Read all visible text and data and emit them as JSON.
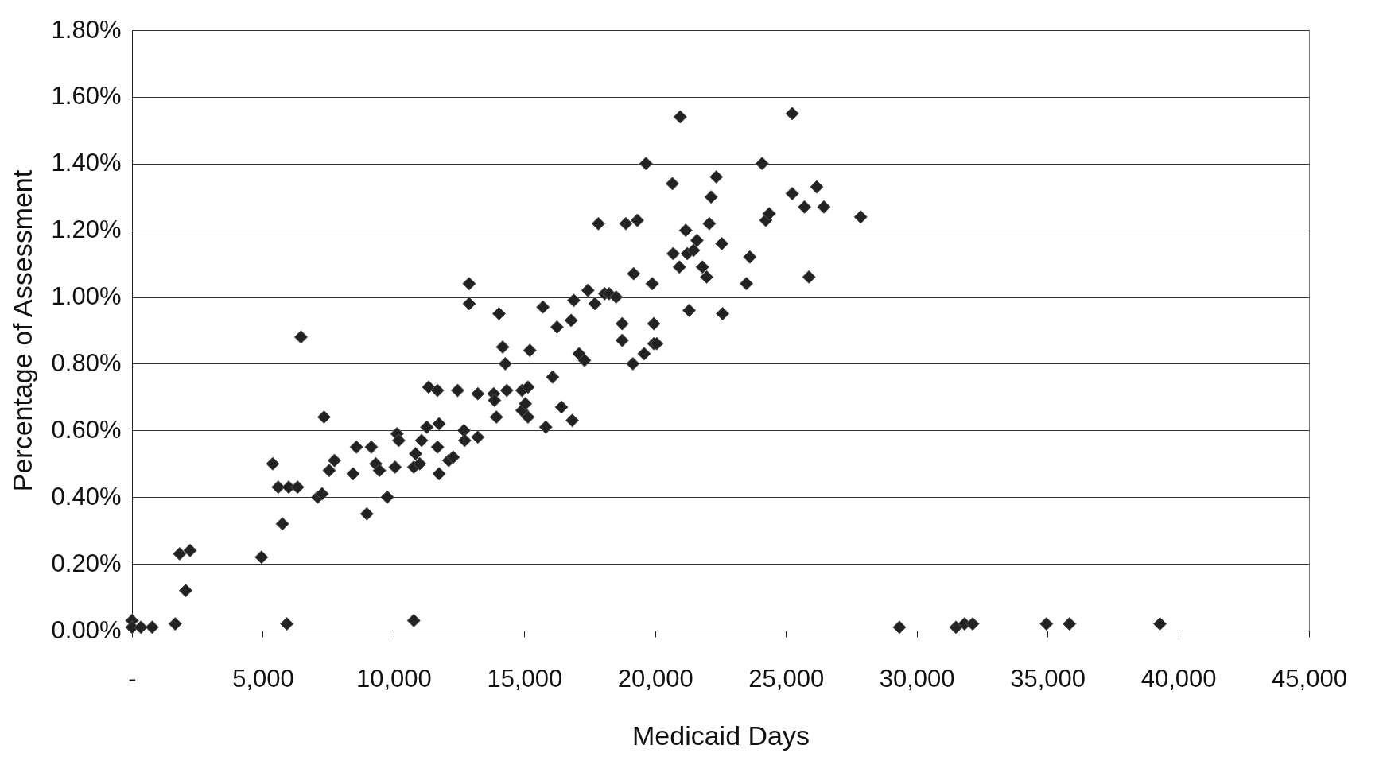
{
  "chart_data": {
    "type": "scatter",
    "xlabel": "Medicaid Days",
    "ylabel": "Percentage of Assessment",
    "xlim": [
      0,
      45000
    ],
    "ylim": [
      0,
      1.8
    ],
    "xticks": [
      {
        "value": 0,
        "label": "-"
      },
      {
        "value": 5000,
        "label": "5,000"
      },
      {
        "value": 10000,
        "label": "10,000"
      },
      {
        "value": 15000,
        "label": "15,000"
      },
      {
        "value": 20000,
        "label": "20,000"
      },
      {
        "value": 25000,
        "label": "25,000"
      },
      {
        "value": 30000,
        "label": "30,000"
      },
      {
        "value": 35000,
        "label": "35,000"
      },
      {
        "value": 40000,
        "label": "40,000"
      },
      {
        "value": 45000,
        "label": "45,000"
      }
    ],
    "yticks": [
      {
        "value": 0,
        "label": "0.00%"
      },
      {
        "value": 0.2,
        "label": "0.20%"
      },
      {
        "value": 0.4,
        "label": "0.40%"
      },
      {
        "value": 0.6,
        "label": "0.60%"
      },
      {
        "value": 0.8,
        "label": "0.80%"
      },
      {
        "value": 1.0,
        "label": "1.00%"
      },
      {
        "value": 1.2,
        "label": "1.20%"
      },
      {
        "value": 1.4,
        "label": "1.40%"
      },
      {
        "value": 1.6,
        "label": "1.60%"
      },
      {
        "value": 1.8,
        "label": "1.80%"
      }
    ],
    "grid": "y",
    "marker": "diamond",
    "series": [
      {
        "color": "#222222",
        "x": [
          0,
          0,
          340,
          770,
          1650,
          1820,
          2050,
          2220,
          4950,
          5380,
          5590,
          5750,
          5990,
          5920,
          6330,
          6460,
          7100,
          7270,
          7340,
          7540,
          7740,
          8450,
          8580,
          8980,
          9150,
          9320,
          9460,
          9760,
          10060,
          10130,
          10200,
          10770,
          10770,
          10840,
          11000,
          11070,
          11270,
          11340,
          11680,
          11680,
          11740,
          11740,
          12110,
          12280,
          12450,
          12690,
          12720,
          12890,
          12890,
          13220,
          13220,
          13830,
          13930,
          13860,
          14030,
          14170,
          14270,
          14330,
          14910,
          14910,
          15040,
          15140,
          15140,
          15210,
          15710,
          15820,
          16080,
          16250,
          16420,
          16790,
          16830,
          16890,
          17090,
          17300,
          17430,
          17700,
          17830,
          18070,
          18240,
          18510,
          18740,
          18740,
          18880,
          19150,
          19180,
          19320,
          19580,
          19650,
          19890,
          19950,
          19950,
          20060,
          20660,
          20690,
          20930,
          20960,
          21170,
          21230,
          21300,
          21470,
          21600,
          21810,
          21970,
          22140,
          22070,
          22340,
          22550,
          22580,
          23490,
          23620,
          24090,
          24230,
          24360,
          25240,
          25240,
          25710,
          25880,
          26180,
          26450,
          27860,
          29340,
          31500,
          31830,
          32140,
          34960,
          35840,
          39300
        ],
        "values": [
          0.03,
          0.01,
          0.01,
          0.01,
          0.02,
          0.23,
          0.12,
          0.24,
          0.22,
          0.5,
          0.43,
          0.32,
          0.43,
          0.02,
          0.43,
          0.88,
          0.4,
          0.41,
          0.64,
          0.48,
          0.51,
          0.47,
          0.55,
          0.35,
          0.55,
          0.5,
          0.48,
          0.4,
          0.49,
          0.59,
          0.57,
          0.49,
          0.03,
          0.53,
          0.5,
          0.57,
          0.61,
          0.73,
          0.72,
          0.55,
          0.47,
          0.62,
          0.51,
          0.52,
          0.72,
          0.6,
          0.57,
          1.04,
          0.98,
          0.58,
          0.71,
          0.71,
          0.64,
          0.69,
          0.95,
          0.85,
          0.8,
          0.72,
          0.66,
          0.72,
          0.68,
          0.64,
          0.73,
          0.84,
          0.97,
          0.61,
          0.76,
          0.91,
          0.67,
          0.93,
          0.63,
          0.99,
          0.83,
          0.81,
          1.02,
          0.98,
          1.22,
          1.01,
          1.01,
          1.0,
          0.87,
          0.92,
          1.22,
          0.8,
          1.07,
          1.23,
          0.83,
          1.4,
          1.04,
          0.92,
          0.86,
          0.86,
          1.34,
          1.13,
          1.09,
          1.54,
          1.2,
          1.13,
          0.96,
          1.14,
          1.17,
          1.09,
          1.06,
          1.3,
          1.22,
          1.36,
          1.16,
          0.95,
          1.04,
          1.12,
          1.4,
          1.23,
          1.25,
          1.55,
          1.31,
          1.27,
          1.06,
          1.33,
          1.27,
          1.24,
          0.01,
          0.01,
          0.02,
          0.02,
          0.02,
          0.02,
          0.02
        ]
      }
    ]
  }
}
